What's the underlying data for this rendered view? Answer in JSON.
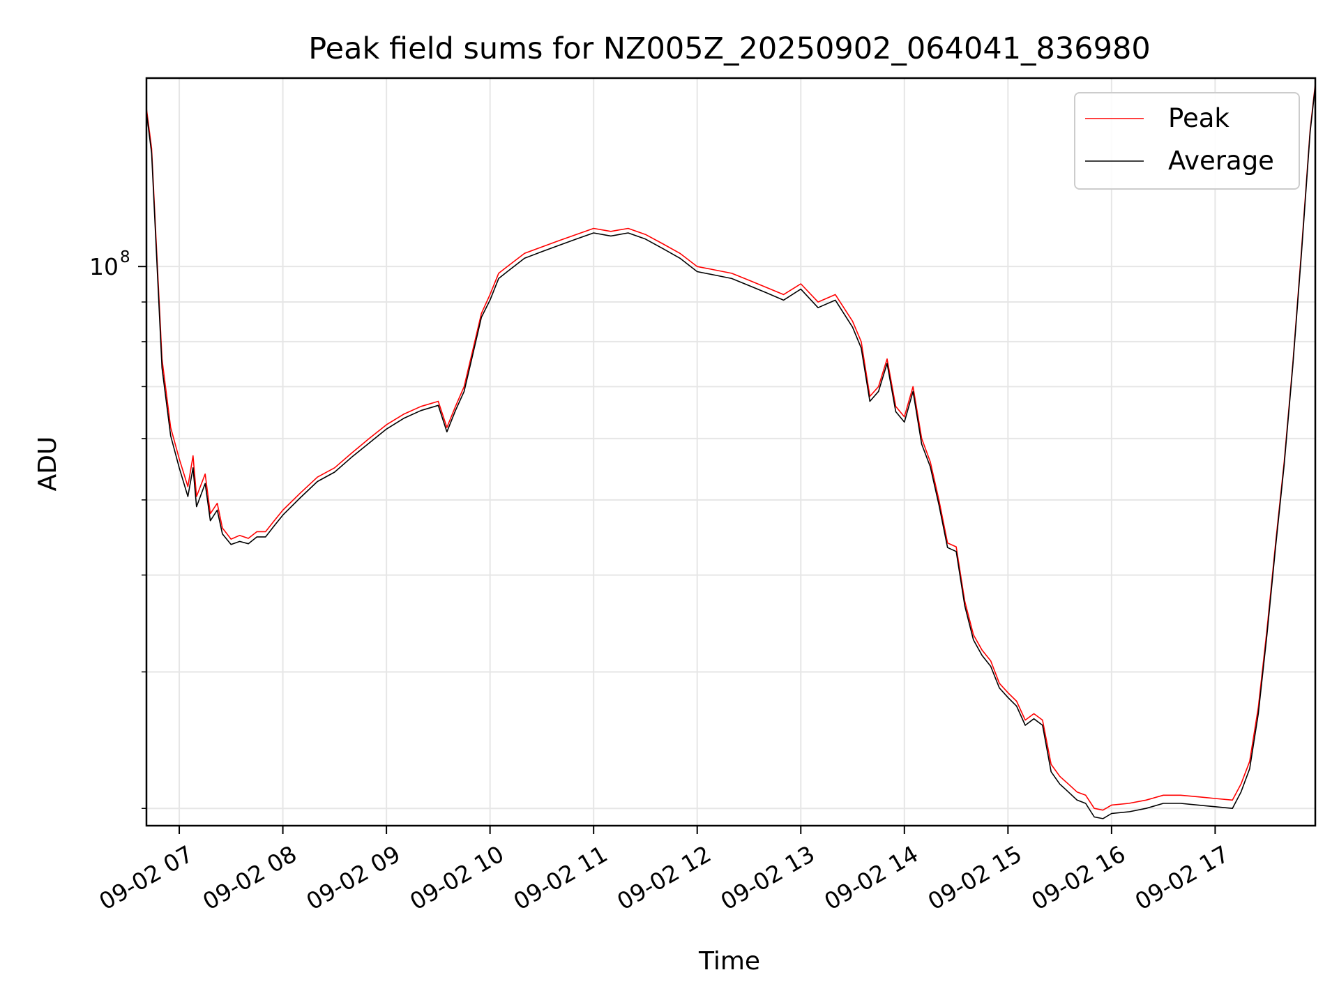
{
  "chart_data": {
    "type": "line",
    "title": "Peak field sums for NZ005Z_20250902_064041_836980",
    "xlabel": "Time",
    "ylabel": "ADU",
    "y_scale": "log",
    "y_major_tick": {
      "value": 100000000,
      "label_base": "10",
      "label_exp": "8"
    },
    "y_minor_ticks": [
      20000000,
      30000000,
      40000000,
      50000000,
      60000000,
      70000000,
      80000000,
      90000000
    ],
    "ylim": [
      19000000,
      175000000
    ],
    "xlim": [
      "2025-09-02 06:41",
      "2025-09-02 17:58"
    ],
    "x_ticks": [
      {
        "t": "2025-09-02 07:00",
        "label": "09-02 07"
      },
      {
        "t": "2025-09-02 08:00",
        "label": "09-02 08"
      },
      {
        "t": "2025-09-02 09:00",
        "label": "09-02 09"
      },
      {
        "t": "2025-09-02 10:00",
        "label": "09-02 10"
      },
      {
        "t": "2025-09-02 11:00",
        "label": "09-02 11"
      },
      {
        "t": "2025-09-02 12:00",
        "label": "09-02 12"
      },
      {
        "t": "2025-09-02 13:00",
        "label": "09-02 13"
      },
      {
        "t": "2025-09-02 14:00",
        "label": "09-02 14"
      },
      {
        "t": "2025-09-02 15:00",
        "label": "09-02 15"
      },
      {
        "t": "2025-09-02 16:00",
        "label": "09-02 16"
      },
      {
        "t": "2025-09-02 17:00",
        "label": "09-02 17"
      }
    ],
    "grid": true,
    "legend": {
      "position": "top-right"
    },
    "series": [
      {
        "name": "Peak",
        "color": "#ff0000",
        "points": [
          [
            "2025-09-02 06:41",
            160000000
          ],
          [
            "2025-09-02 06:44",
            142000000
          ],
          [
            "2025-09-02 06:46",
            115000000
          ],
          [
            "2025-09-02 06:50",
            76000000
          ],
          [
            "2025-09-02 06:55",
            62000000
          ],
          [
            "2025-09-02 07:00",
            56500000
          ],
          [
            "2025-09-02 07:05",
            52000000
          ],
          [
            "2025-09-02 07:08",
            57000000
          ],
          [
            "2025-09-02 07:10",
            50500000
          ],
          [
            "2025-09-02 07:15",
            54000000
          ],
          [
            "2025-09-02 07:18",
            48000000
          ],
          [
            "2025-09-02 07:22",
            49500000
          ],
          [
            "2025-09-02 07:25",
            46000000
          ],
          [
            "2025-09-02 07:30",
            44500000
          ],
          [
            "2025-09-02 07:35",
            45000000
          ],
          [
            "2025-09-02 07:40",
            44600000
          ],
          [
            "2025-09-02 07:45",
            45500000
          ],
          [
            "2025-09-02 07:50",
            45500000
          ],
          [
            "2025-09-02 07:55",
            47000000
          ],
          [
            "2025-09-02 08:00",
            48500000
          ],
          [
            "2025-09-02 08:10",
            51000000
          ],
          [
            "2025-09-02 08:20",
            53500000
          ],
          [
            "2025-09-02 08:30",
            55000000
          ],
          [
            "2025-09-02 08:40",
            57500000
          ],
          [
            "2025-09-02 08:50",
            60000000
          ],
          [
            "2025-09-02 09:00",
            62500000
          ],
          [
            "2025-09-02 09:10",
            64500000
          ],
          [
            "2025-09-02 09:20",
            66000000
          ],
          [
            "2025-09-02 09:30",
            67000000
          ],
          [
            "2025-09-02 09:35",
            62000000
          ],
          [
            "2025-09-02 09:40",
            66000000
          ],
          [
            "2025-09-02 09:45",
            70000000
          ],
          [
            "2025-09-02 09:50",
            78000000
          ],
          [
            "2025-09-02 09:55",
            87000000
          ],
          [
            "2025-09-02 10:00",
            92000000
          ],
          [
            "2025-09-02 10:05",
            98000000
          ],
          [
            "2025-09-02 10:10",
            100000000
          ],
          [
            "2025-09-02 10:20",
            104000000
          ],
          [
            "2025-09-02 10:30",
            106000000
          ],
          [
            "2025-09-02 10:40",
            108000000
          ],
          [
            "2025-09-02 10:50",
            110000000
          ],
          [
            "2025-09-02 11:00",
            112000000
          ],
          [
            "2025-09-02 11:10",
            111000000
          ],
          [
            "2025-09-02 11:20",
            112000000
          ],
          [
            "2025-09-02 11:30",
            110000000
          ],
          [
            "2025-09-02 11:40",
            107000000
          ],
          [
            "2025-09-02 11:50",
            104000000
          ],
          [
            "2025-09-02 12:00",
            100000000
          ],
          [
            "2025-09-02 12:10",
            99000000
          ],
          [
            "2025-09-02 12:20",
            98000000
          ],
          [
            "2025-09-02 12:30",
            96000000
          ],
          [
            "2025-09-02 12:40",
            94000000
          ],
          [
            "2025-09-02 12:50",
            92000000
          ],
          [
            "2025-09-02 13:00",
            95000000
          ],
          [
            "2025-09-02 13:10",
            90000000
          ],
          [
            "2025-09-02 13:20",
            92000000
          ],
          [
            "2025-09-02 13:30",
            85000000
          ],
          [
            "2025-09-02 13:35",
            80000000
          ],
          [
            "2025-09-02 13:40",
            68000000
          ],
          [
            "2025-09-02 13:45",
            70000000
          ],
          [
            "2025-09-02 13:50",
            76000000
          ],
          [
            "2025-09-02 13:55",
            66000000
          ],
          [
            "2025-09-02 14:00",
            64000000
          ],
          [
            "2025-09-02 14:05",
            70000000
          ],
          [
            "2025-09-02 14:10",
            60000000
          ],
          [
            "2025-09-02 14:15",
            56000000
          ],
          [
            "2025-09-02 14:20",
            50000000
          ],
          [
            "2025-09-02 14:25",
            44000000
          ],
          [
            "2025-09-02 14:30",
            43500000
          ],
          [
            "2025-09-02 14:35",
            37000000
          ],
          [
            "2025-09-02 14:40",
            33500000
          ],
          [
            "2025-09-02 14:45",
            32000000
          ],
          [
            "2025-09-02 14:50",
            31000000
          ],
          [
            "2025-09-02 14:55",
            29000000
          ],
          [
            "2025-09-02 15:00",
            28200000
          ],
          [
            "2025-09-02 15:05",
            27500000
          ],
          [
            "2025-09-02 15:10",
            26000000
          ],
          [
            "2025-09-02 15:15",
            26500000
          ],
          [
            "2025-09-02 15:20",
            26000000
          ],
          [
            "2025-09-02 15:25",
            22800000
          ],
          [
            "2025-09-02 15:30",
            22000000
          ],
          [
            "2025-09-02 15:35",
            21500000
          ],
          [
            "2025-09-02 15:40",
            21000000
          ],
          [
            "2025-09-02 15:45",
            20800000
          ],
          [
            "2025-09-02 15:50",
            20000000
          ],
          [
            "2025-09-02 15:55",
            19900000
          ],
          [
            "2025-09-02 16:00",
            20200000
          ],
          [
            "2025-09-02 16:10",
            20300000
          ],
          [
            "2025-09-02 16:20",
            20500000
          ],
          [
            "2025-09-02 16:30",
            20800000
          ],
          [
            "2025-09-02 16:40",
            20800000
          ],
          [
            "2025-09-02 16:50",
            20700000
          ],
          [
            "2025-09-02 17:00",
            20600000
          ],
          [
            "2025-09-02 17:10",
            20500000
          ],
          [
            "2025-09-02 17:15",
            21500000
          ],
          [
            "2025-09-02 17:20",
            23000000
          ],
          [
            "2025-09-02 17:25",
            27000000
          ],
          [
            "2025-09-02 17:30",
            34000000
          ],
          [
            "2025-09-02 17:35",
            44000000
          ],
          [
            "2025-09-02 17:40",
            56000000
          ],
          [
            "2025-09-02 17:45",
            75000000
          ],
          [
            "2025-09-02 17:50",
            105000000
          ],
          [
            "2025-09-02 17:55",
            150000000
          ],
          [
            "2025-09-02 17:58",
            172000000
          ]
        ]
      },
      {
        "name": "Average",
        "color": "#000000",
        "points": [
          [
            "2025-09-02 06:41",
            158000000
          ],
          [
            "2025-09-02 06:44",
            140000000
          ],
          [
            "2025-09-02 06:46",
            113000000
          ],
          [
            "2025-09-02 06:50",
            74000000
          ],
          [
            "2025-09-02 06:55",
            60500000
          ],
          [
            "2025-09-02 07:00",
            55000000
          ],
          [
            "2025-09-02 07:05",
            50500000
          ],
          [
            "2025-09-02 07:08",
            55000000
          ],
          [
            "2025-09-02 07:10",
            49000000
          ],
          [
            "2025-09-02 07:15",
            52500000
          ],
          [
            "2025-09-02 07:18",
            47000000
          ],
          [
            "2025-09-02 07:22",
            48500000
          ],
          [
            "2025-09-02 07:25",
            45200000
          ],
          [
            "2025-09-02 07:30",
            43800000
          ],
          [
            "2025-09-02 07:35",
            44200000
          ],
          [
            "2025-09-02 07:40",
            43900000
          ],
          [
            "2025-09-02 07:45",
            44800000
          ],
          [
            "2025-09-02 07:50",
            44800000
          ],
          [
            "2025-09-02 07:55",
            46300000
          ],
          [
            "2025-09-02 08:00",
            47800000
          ],
          [
            "2025-09-02 08:10",
            50300000
          ],
          [
            "2025-09-02 08:20",
            52800000
          ],
          [
            "2025-09-02 08:30",
            54300000
          ],
          [
            "2025-09-02 08:40",
            56800000
          ],
          [
            "2025-09-02 08:50",
            59200000
          ],
          [
            "2025-09-02 09:00",
            61700000
          ],
          [
            "2025-09-02 09:10",
            63700000
          ],
          [
            "2025-09-02 09:20",
            65200000
          ],
          [
            "2025-09-02 09:30",
            66200000
          ],
          [
            "2025-09-02 09:35",
            61200000
          ],
          [
            "2025-09-02 09:40",
            65200000
          ],
          [
            "2025-09-02 09:45",
            69000000
          ],
          [
            "2025-09-02 09:50",
            77000000
          ],
          [
            "2025-09-02 09:55",
            86000000
          ],
          [
            "2025-09-02 10:00",
            90500000
          ],
          [
            "2025-09-02 10:05",
            96500000
          ],
          [
            "2025-09-02 10:10",
            98500000
          ],
          [
            "2025-09-02 10:20",
            102500000
          ],
          [
            "2025-09-02 10:30",
            104500000
          ],
          [
            "2025-09-02 10:40",
            106500000
          ],
          [
            "2025-09-02 10:50",
            108500000
          ],
          [
            "2025-09-02 11:00",
            110500000
          ],
          [
            "2025-09-02 11:10",
            109500000
          ],
          [
            "2025-09-02 11:20",
            110500000
          ],
          [
            "2025-09-02 11:30",
            108500000
          ],
          [
            "2025-09-02 11:40",
            105500000
          ],
          [
            "2025-09-02 11:50",
            102500000
          ],
          [
            "2025-09-02 12:00",
            98500000
          ],
          [
            "2025-09-02 12:10",
            97500000
          ],
          [
            "2025-09-02 12:20",
            96500000
          ],
          [
            "2025-09-02 12:30",
            94500000
          ],
          [
            "2025-09-02 12:40",
            92500000
          ],
          [
            "2025-09-02 12:50",
            90500000
          ],
          [
            "2025-09-02 13:00",
            93500000
          ],
          [
            "2025-09-02 13:10",
            88500000
          ],
          [
            "2025-09-02 13:20",
            90500000
          ],
          [
            "2025-09-02 13:30",
            83500000
          ],
          [
            "2025-09-02 13:35",
            78500000
          ],
          [
            "2025-09-02 13:40",
            67000000
          ],
          [
            "2025-09-02 13:45",
            69000000
          ],
          [
            "2025-09-02 13:50",
            75000000
          ],
          [
            "2025-09-02 13:55",
            65000000
          ],
          [
            "2025-09-02 14:00",
            63000000
          ],
          [
            "2025-09-02 14:05",
            69000000
          ],
          [
            "2025-09-02 14:10",
            59000000
          ],
          [
            "2025-09-02 14:15",
            55200000
          ],
          [
            "2025-09-02 14:20",
            49300000
          ],
          [
            "2025-09-02 14:25",
            43400000
          ],
          [
            "2025-09-02 14:30",
            42900000
          ],
          [
            "2025-09-02 14:35",
            36500000
          ],
          [
            "2025-09-02 14:40",
            33000000
          ],
          [
            "2025-09-02 14:45",
            31500000
          ],
          [
            "2025-09-02 14:50",
            30500000
          ],
          [
            "2025-09-02 14:55",
            28600000
          ],
          [
            "2025-09-02 15:00",
            27800000
          ],
          [
            "2025-09-02 15:05",
            27100000
          ],
          [
            "2025-09-02 15:10",
            25600000
          ],
          [
            "2025-09-02 15:15",
            26100000
          ],
          [
            "2025-09-02 15:20",
            25600000
          ],
          [
            "2025-09-02 15:25",
            22300000
          ],
          [
            "2025-09-02 15:30",
            21500000
          ],
          [
            "2025-09-02 15:35",
            21000000
          ],
          [
            "2025-09-02 15:40",
            20500000
          ],
          [
            "2025-09-02 15:45",
            20300000
          ],
          [
            "2025-09-02 15:50",
            19500000
          ],
          [
            "2025-09-02 15:55",
            19400000
          ],
          [
            "2025-09-02 16:00",
            19700000
          ],
          [
            "2025-09-02 16:10",
            19800000
          ],
          [
            "2025-09-02 16:20",
            20000000
          ],
          [
            "2025-09-02 16:30",
            20300000
          ],
          [
            "2025-09-02 16:40",
            20300000
          ],
          [
            "2025-09-02 16:50",
            20200000
          ],
          [
            "2025-09-02 17:00",
            20100000
          ],
          [
            "2025-09-02 17:10",
            20000000
          ],
          [
            "2025-09-02 17:15",
            21000000
          ],
          [
            "2025-09-02 17:20",
            22500000
          ],
          [
            "2025-09-02 17:25",
            26500000
          ],
          [
            "2025-09-02 17:30",
            33500000
          ],
          [
            "2025-09-02 17:35",
            43500000
          ],
          [
            "2025-09-02 17:40",
            55500000
          ],
          [
            "2025-09-02 17:45",
            74500000
          ],
          [
            "2025-09-02 17:50",
            104000000
          ],
          [
            "2025-09-02 17:55",
            149000000
          ],
          [
            "2025-09-02 17:58",
            171000000
          ]
        ]
      }
    ]
  }
}
